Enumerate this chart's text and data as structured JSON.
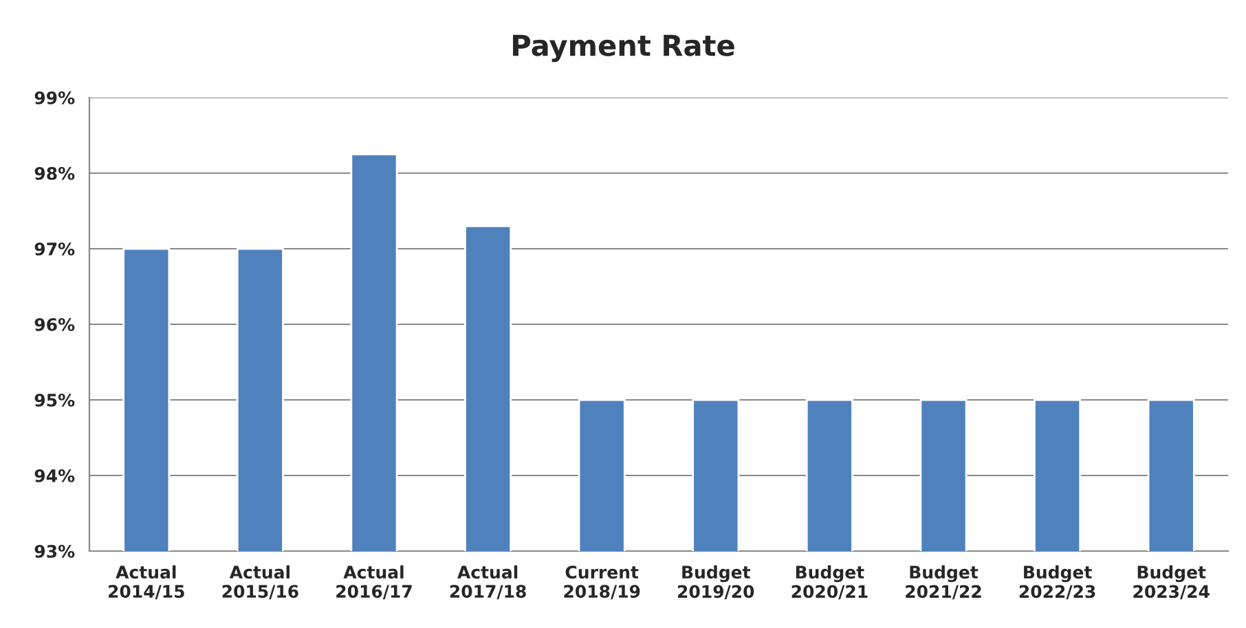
{
  "chart_data": {
    "type": "bar",
    "title": "Payment Rate",
    "categories": [
      "Actual\n2014/15",
      "Actual\n2015/16",
      "Actual\n2016/17",
      "Actual\n2017/18",
      "Current\n2018/19",
      "Budget\n2019/20",
      "Budget\n2020/21",
      "Budget\n2021/22",
      "Budget\n2022/23",
      "Budget\n2023/24"
    ],
    "values": [
      97,
      97,
      98.25,
      97.3,
      95,
      95,
      95,
      95,
      95,
      95
    ],
    "color": "#4f81bd",
    "ylim": [
      93,
      99
    ],
    "yticks": [
      {
        "value": 93,
        "label": "93%"
      },
      {
        "value": 94,
        "label": "94%"
      },
      {
        "value": 95,
        "label": "95%"
      },
      {
        "value": 96,
        "label": "96%"
      },
      {
        "value": 97,
        "label": "97%"
      },
      {
        "value": 98,
        "label": "98%"
      },
      {
        "value": 99,
        "label": "99%"
      }
    ],
    "grid": "y"
  }
}
